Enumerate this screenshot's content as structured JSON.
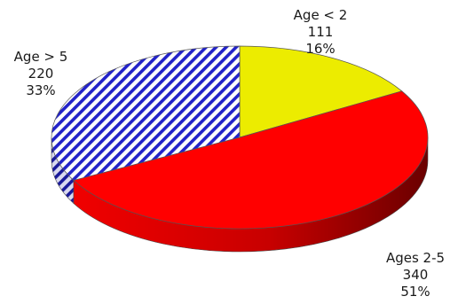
{
  "chart_data": {
    "type": "pie",
    "title": "",
    "slices": [
      {
        "label": "Age < 2",
        "value": 111,
        "percent": "16%",
        "color": "#ecec00",
        "pattern": "solid"
      },
      {
        "label": "Ages 2-5",
        "value": 340,
        "percent": "51%",
        "color": "#ff0000",
        "pattern": "solid"
      },
      {
        "label": "Age > 5",
        "value": 220,
        "percent": "33%",
        "color": "#2323c8",
        "pattern": "diagonal-stripes"
      }
    ],
    "start_direction": "up",
    "direction": "clockwise",
    "style": "3d",
    "legend": "none"
  }
}
